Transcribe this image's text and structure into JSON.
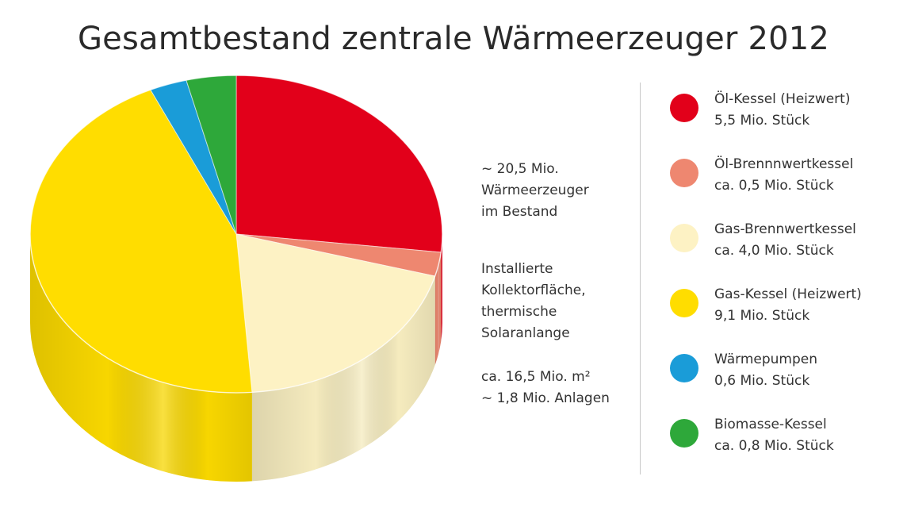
{
  "chart_data": {
    "type": "pie",
    "title": "Gesamtbestand zentrale Wärmeerzeuger 2012",
    "unit": "Mio. Stück",
    "series": [
      {
        "name": "Öl-Kessel (Heizwert)",
        "value_label": "5,5 Mio. Stück",
        "value": 5.5,
        "color": "#e2001a"
      },
      {
        "name": "Öl-Brennnwertkessel",
        "value_label": "ca. 0,5 Mio. Stück",
        "value": 0.5,
        "color": "#ee8770"
      },
      {
        "name": "Gas-Brennwertkessel",
        "value_label": "ca. 4,0 Mio. Stück",
        "value": 4.0,
        "color": "#fdf2c4"
      },
      {
        "name": "Gas-Kessel (Heizwert)",
        "value_label": "9,1 Mio. Stück",
        "value": 9.1,
        "color": "#ffdd00"
      },
      {
        "name": "Wärmepumpen",
        "value_label": "0,6 Mio. Stück",
        "value": 0.6,
        "color": "#1a9cd8"
      },
      {
        "name": "Biomasse-Kessel",
        "value_label": "ca. 0,8 Mio. Stück",
        "value": 0.8,
        "color": "#2ea83a"
      }
    ],
    "legend_position": "right",
    "annotations": {
      "total_lines": [
        "~ 20,5 Mio.",
        "Wärmeerzeuger",
        "im Bestand"
      ],
      "solar_lines": [
        "Installierte",
        "Kollektorfläche,",
        "thermische",
        "Solaranlange"
      ],
      "stats_lines": [
        "ca. 16,5 Mio. m²",
        "~ 1,8 Mio. Anlagen"
      ]
    }
  }
}
